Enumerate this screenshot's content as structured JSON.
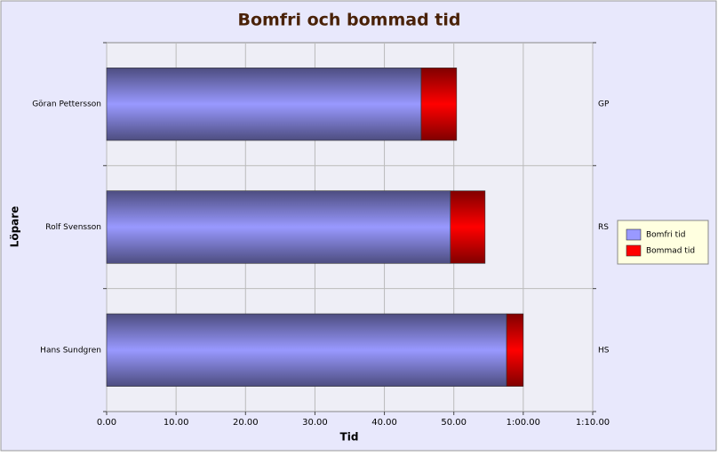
{
  "chart_data": {
    "type": "stacked-bar-horizontal",
    "title": "Bomfri och bommad tid",
    "x_label": "Tid",
    "y_label": "Löpare",
    "categories": [
      "Göran Pettersson",
      "Rolf Svensson",
      "Hans Sundgren"
    ],
    "secondary_categories": [
      "GP",
      "RS",
      "HS"
    ],
    "series": [
      {
        "name": "Bomfri tid",
        "color": "#9999ff",
        "values": [
          45.3,
          49.5,
          57.6
        ]
      },
      {
        "name": "Bommad tid",
        "color": "#ff0000",
        "values": [
          5.1,
          5.0,
          2.4
        ]
      }
    ],
    "xlim": [
      0,
      70
    ],
    "xticks": [
      {
        "value": 0,
        "label": "0.00"
      },
      {
        "value": 10,
        "label": "10.00"
      },
      {
        "value": 20,
        "label": "20.00"
      },
      {
        "value": 30,
        "label": "30.00"
      },
      {
        "value": 40,
        "label": "40.00"
      },
      {
        "value": 50,
        "label": "50.00"
      },
      {
        "value": 60,
        "label": "1:00.00"
      },
      {
        "value": 70,
        "label": "1:10.00"
      }
    ],
    "grid": true,
    "legend": "right"
  }
}
